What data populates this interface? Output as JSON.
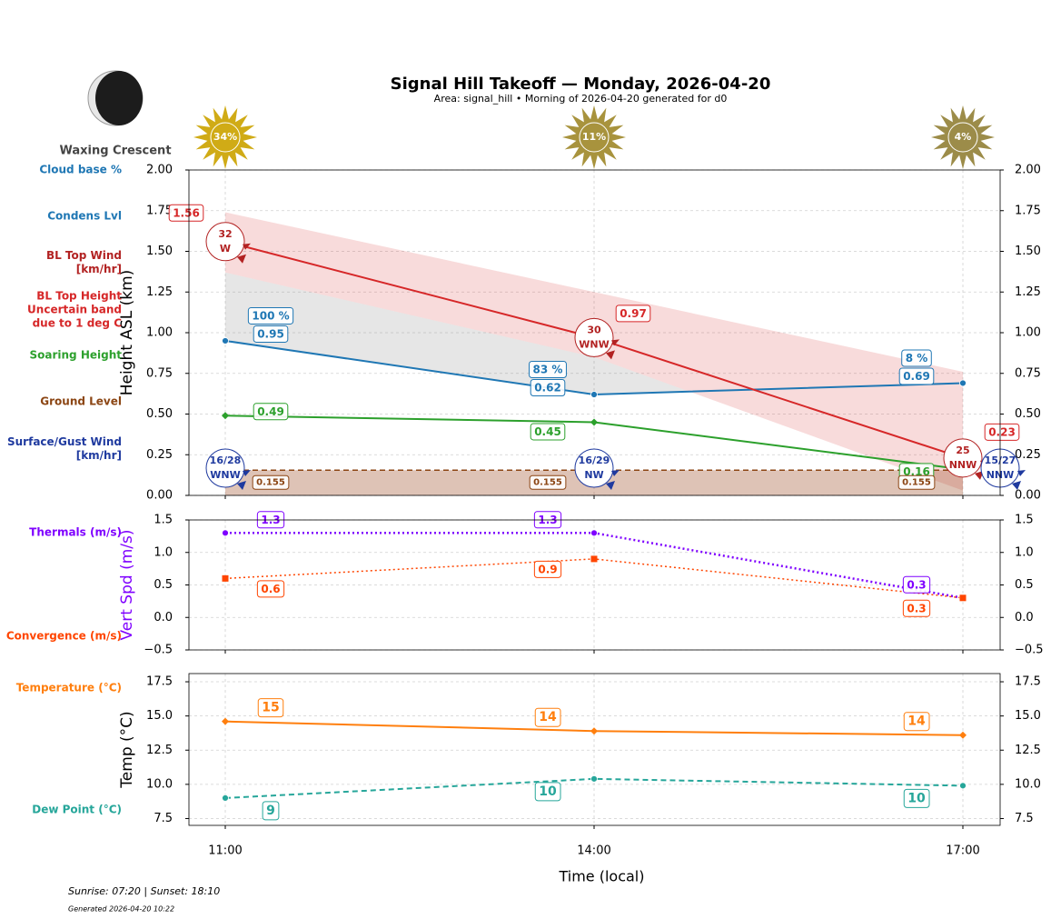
{
  "moon_phase": "Waxing Crescent",
  "footer": [
    "Sunrise: 07:20 | Sunset: 18:10",
    "Generated 2026-04-20 10:22"
  ],
  "chart_data": [
    {
      "type": "line",
      "title": "Signal Hill Takeoff — Monday, 2026-04-20",
      "subtitle": "Area: signal_hill • Morning of 2026-04-20 generated for d0",
      "ylabel": "Height ASL (km)",
      "ylim": [
        0,
        2
      ],
      "yticks": [
        {
          "value": 0,
          "label": "0.00"
        },
        {
          "value": 0.25,
          "label": "0.25"
        },
        {
          "value": 0.5,
          "label": "0.50"
        },
        {
          "value": 0.75,
          "label": "0.75"
        },
        {
          "value": 1,
          "label": "1.00"
        },
        {
          "value": 1.25,
          "label": "1.25"
        },
        {
          "value": 1.5,
          "label": "1.50"
        },
        {
          "value": 1.75,
          "label": "1.75"
        },
        {
          "value": 2,
          "label": "2.00"
        }
      ],
      "grid": true,
      "sunshine": {
        "values": [
          34,
          11,
          4
        ],
        "value_labels": [
          "34%",
          "11%",
          "4%"
        ]
      },
      "series": [
        {
          "name": "Cloud base %",
          "style": "cloud",
          "color": "#1f77b4",
          "values": [
            100,
            83,
            8
          ],
          "value_labels": [
            "100 %",
            "83 %",
            "8 %"
          ]
        },
        {
          "name": "Condens Lvl",
          "style": "line",
          "color": "#1f77b4",
          "marker": "circle",
          "dash": "solid",
          "values": [
            0.95,
            0.62,
            0.69
          ]
        },
        {
          "name": "BL Top Wind\n[km/hr]",
          "style": "wind",
          "color": "#b22222",
          "values": [
            32,
            30,
            25
          ],
          "directions": [
            "W",
            "WNW",
            "NNW"
          ]
        },
        {
          "name": "BL Top Height\nUncertain band\ndue to 1 deg C",
          "style": "band",
          "color": "#d62728",
          "values": [
            1.56,
            0.97,
            0.23
          ],
          "upper": [
            1.74,
            1.25,
            0.76
          ],
          "lower": [
            1.37,
            0.85,
            0.03
          ]
        },
        {
          "name": "Soaring Height",
          "style": "line",
          "color": "#2ca02c",
          "marker": "diamond",
          "dash": "solid",
          "values": [
            0.49,
            0.45,
            0.16
          ]
        },
        {
          "name": "Ground Level",
          "style": "ground",
          "color": "#8b4513",
          "values": [
            0.155,
            0.155,
            0.155
          ]
        },
        {
          "name": "Surface/Gust Wind\n[km/hr]",
          "style": "wind",
          "color": "#1f3a9f",
          "values": [
            16,
            16,
            15
          ],
          "gusts": [
            28,
            29,
            27
          ],
          "value_labels": [
            "16/28",
            "16/29",
            "15/27"
          ],
          "directions": [
            "WNW",
            "NW",
            "NNW"
          ]
        }
      ]
    },
    {
      "type": "line",
      "ylabel": "Vert Spd (m/s)",
      "ylabel_color": "#7f00ff",
      "ylim": [
        -0.5,
        1.5
      ],
      "yticks": [
        {
          "value": -0.5,
          "label": "−0.5"
        },
        {
          "value": 0,
          "label": "0.0"
        },
        0.5,
        {
          "value": 1,
          "label": "1.0"
        },
        1.5
      ],
      "grid": true,
      "series": [
        {
          "name": "Thermals (m/s)",
          "style": "line",
          "color": "#7f00ff",
          "marker": "circle",
          "dash": "dotted",
          "values": [
            1.3,
            1.3,
            0.3
          ]
        },
        {
          "name": "Convergence (m/s)",
          "style": "line",
          "color": "#ff4500",
          "marker": "square",
          "dash": "dotted",
          "values": [
            0.6,
            0.9,
            0.3
          ]
        }
      ]
    },
    {
      "type": "line",
      "ylabel": "Temp (°C)",
      "xlabel": "Time (local)",
      "categories": [
        "11:00",
        "14:00",
        "17:00"
      ],
      "ylim": [
        7,
        18.1
      ],
      "yticks": [
        7.5,
        {
          "value": 10,
          "label": "10.0"
        },
        12.5,
        {
          "value": 15,
          "label": "15.0"
        },
        17.5
      ],
      "grid": true,
      "series": [
        {
          "name": "Temperature (°C)",
          "style": "line",
          "color": "#ff7f0e",
          "marker": "diamond",
          "dash": "solid",
          "values": [
            14.6,
            13.9,
            13.6
          ],
          "value_labels": [
            "15",
            "14",
            "14"
          ]
        },
        {
          "name": "Dew Point (°C)",
          "style": "line",
          "color": "#26a69a",
          "marker": "circle",
          "dash": "dashed",
          "values": [
            9.0,
            10.4,
            9.9
          ],
          "value_labels": [
            "9",
            "10",
            "10"
          ]
        }
      ]
    }
  ]
}
